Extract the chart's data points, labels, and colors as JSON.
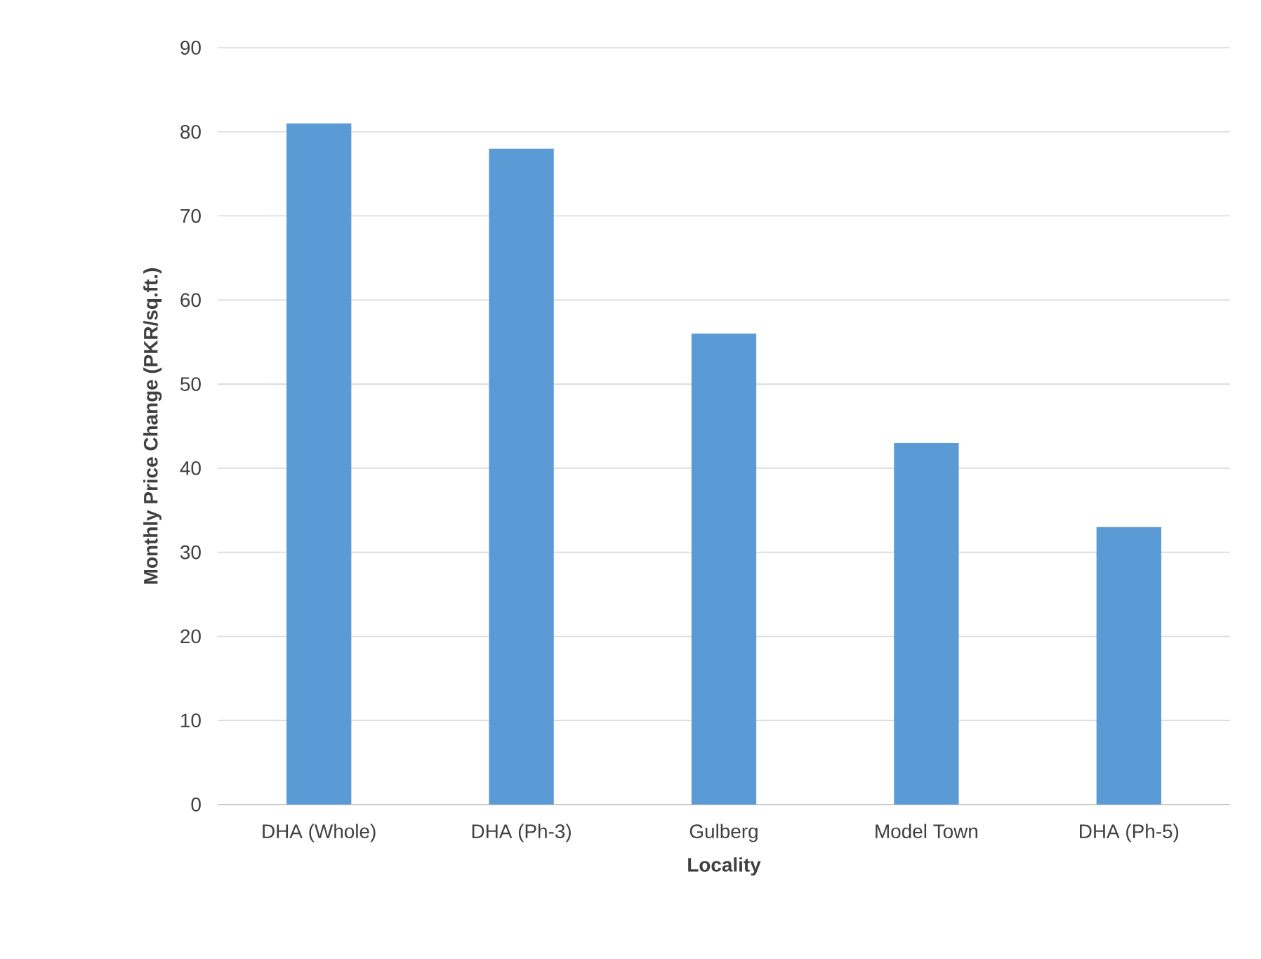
{
  "chart_data": {
    "type": "bar",
    "xlabel": "Locality",
    "ylabel": "Monthly Price Change (PKR/sq.ft.)",
    "categories": [
      "DHA (Whole)",
      "DHA (Ph-3)",
      "Gulberg",
      "Model Town",
      "DHA (Ph-5)"
    ],
    "values": [
      81,
      78,
      56,
      43,
      33
    ],
    "color": "#5b9bd5",
    "ylim": [
      0,
      90
    ],
    "yticks": [
      0,
      10,
      20,
      30,
      40,
      50,
      60,
      70,
      80,
      90
    ],
    "grid": "y"
  }
}
